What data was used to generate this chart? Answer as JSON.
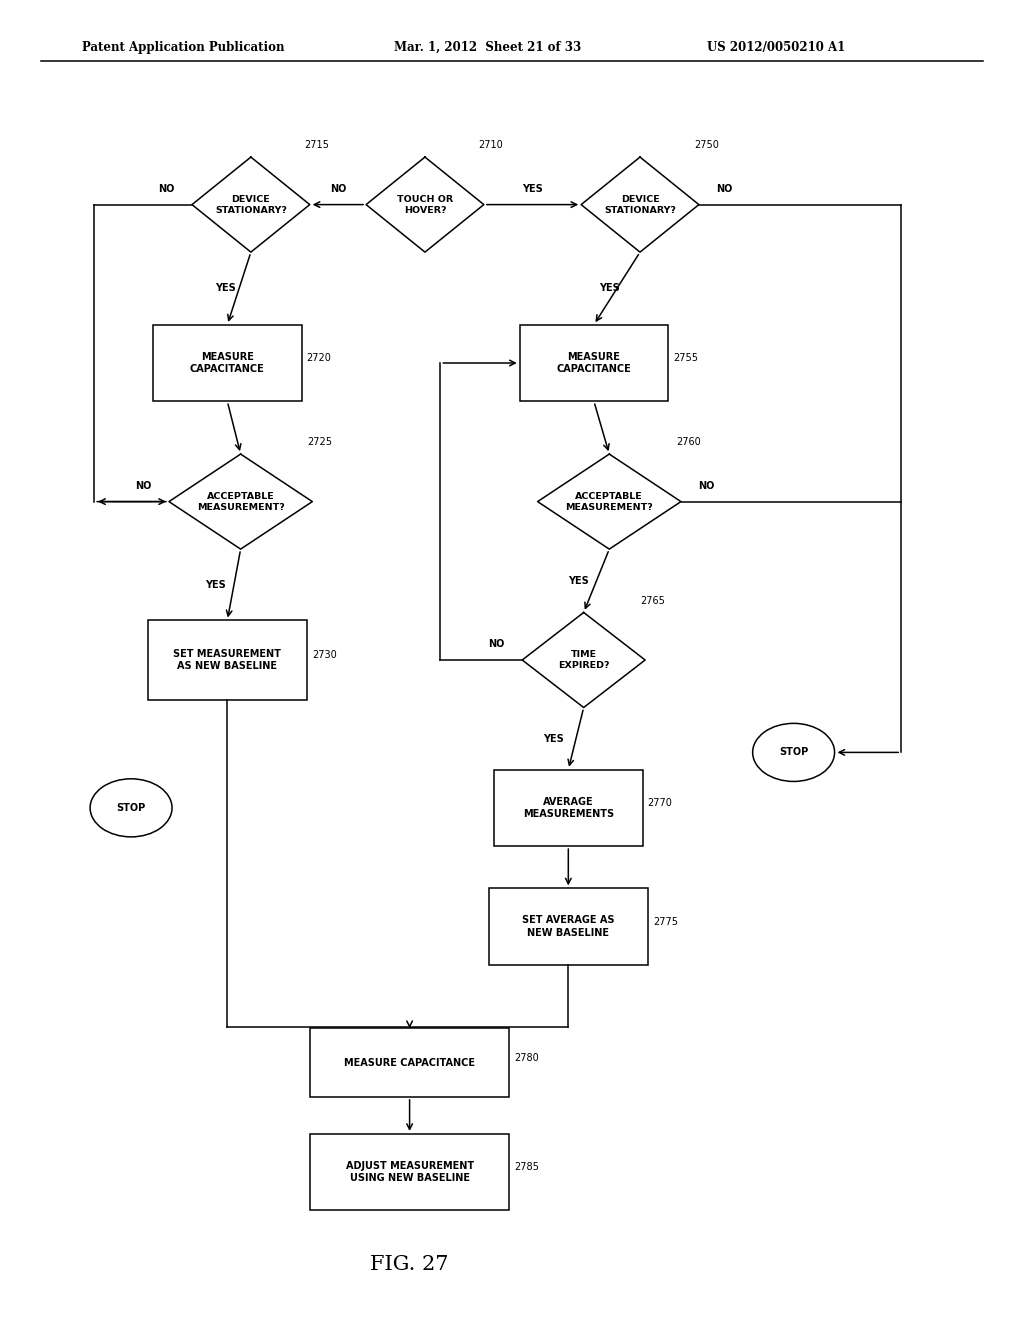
{
  "header_left": "Patent Application Publication",
  "header_mid": "Mar. 1, 2012  Sheet 21 of 33",
  "header_right": "US 2012/0050210 A1",
  "fig_label": "FIG. 27",
  "background": "#ffffff"
}
